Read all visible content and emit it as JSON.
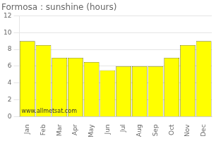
{
  "chart_data": {
    "type": "bar",
    "title": "Formosa : sunshine (hours)",
    "categories": [
      "Jan",
      "Feb",
      "Mar",
      "Apr",
      "May",
      "Jun",
      "Jul",
      "Aug",
      "Sep",
      "Oct",
      "Nov",
      "Dec"
    ],
    "values": [
      9.0,
      8.5,
      7.0,
      7.0,
      6.5,
      5.5,
      6.0,
      6.0,
      6.0,
      7.0,
      8.5,
      9.0
    ],
    "color": "#FFFF00",
    "ylim": [
      0,
      12
    ],
    "yticks": [
      0,
      2,
      4,
      6,
      8,
      10,
      12
    ],
    "grid": true,
    "annotation": "www.allmetsat.com"
  }
}
